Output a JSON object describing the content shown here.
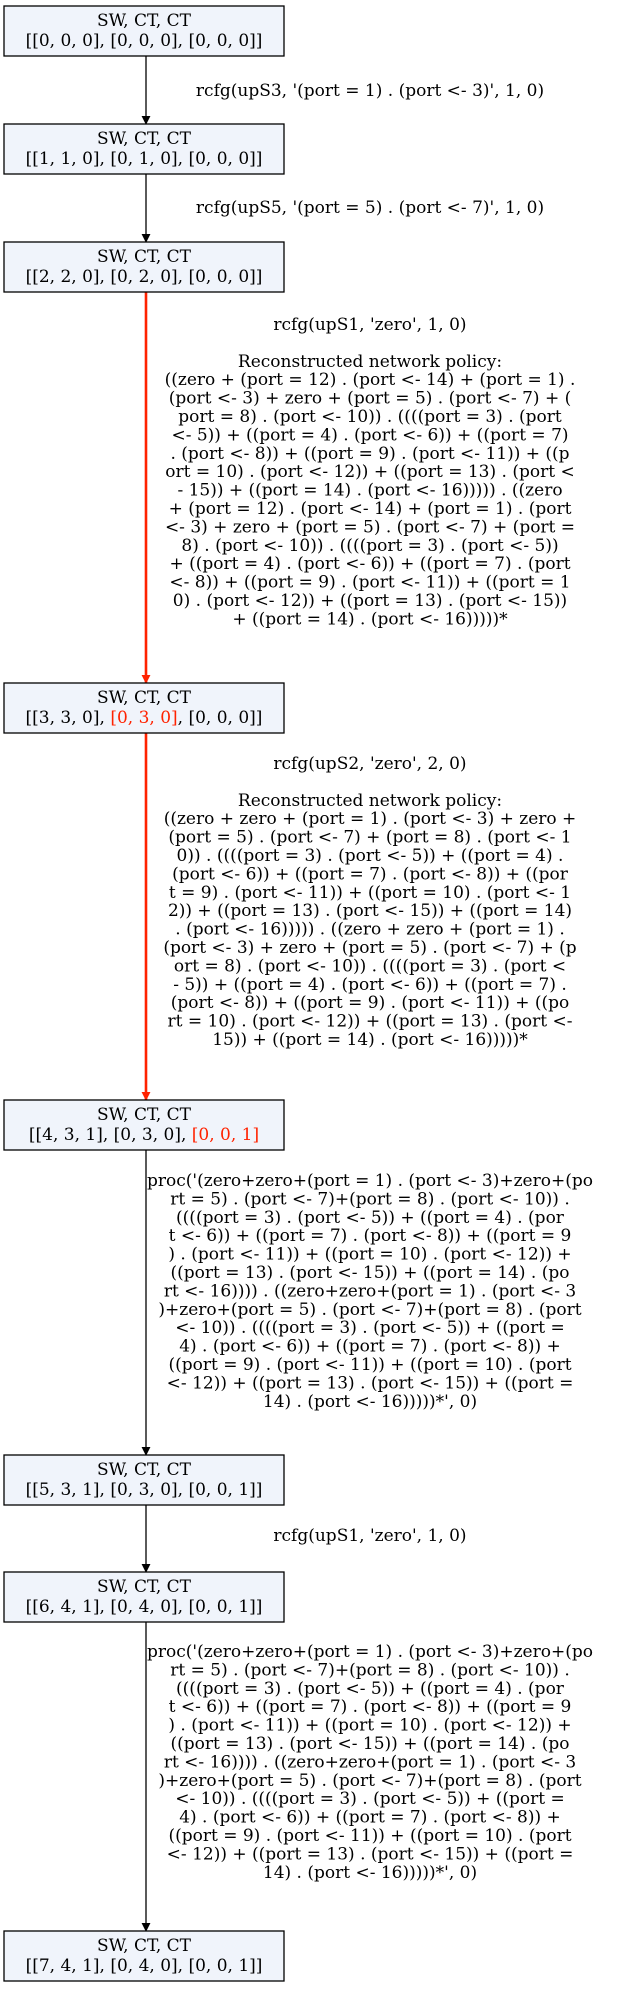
{
  "colors": {
    "node_fill": "#f0f4fb",
    "node_border": "#000000",
    "edge_default": "#000000",
    "edge_highlight": "#ff2200",
    "text_highlight": "#ff2200"
  },
  "nodes": [
    {
      "line1": "SW, CT, CT",
      "line2": [
        {
          "text": "[[0, 0, 0], [0, 0, 0], [0, 0, 0]]",
          "highlight": false
        }
      ]
    },
    {
      "line1": "SW, CT, CT",
      "line2": [
        {
          "text": "[[1, 1, 0], [0, 1, 0], [0, 0, 0]]",
          "highlight": false
        }
      ]
    },
    {
      "line1": "SW, CT, CT",
      "line2": [
        {
          "text": "[[2, 2, 0], [0, 2, 0], [0, 0, 0]]",
          "highlight": false
        }
      ]
    },
    {
      "line1": "SW, CT, CT",
      "line2": [
        {
          "text": "[[3, 3, 0], ",
          "highlight": false
        },
        {
          "text": "[0, 3, 0]",
          "highlight": true
        },
        {
          "text": ", [0, 0, 0]]",
          "highlight": false
        }
      ]
    },
    {
      "line1": "SW, CT, CT",
      "line2": [
        {
          "text": "[[4, 3, 1], [0, 3, 0], ",
          "highlight": false
        },
        {
          "text": "[0, 0, 1]",
          "highlight": true
        }
      ]
    },
    {
      "line1": "SW, CT, CT",
      "line2": [
        {
          "text": "[[5, 3, 1], [0, 3, 0], [0, 0, 1]]",
          "highlight": false
        }
      ]
    },
    {
      "line1": "SW, CT, CT",
      "line2": [
        {
          "text": "[[6, 4, 1], [0, 4, 0], [0, 0, 1]]",
          "highlight": false
        }
      ]
    },
    {
      "line1": "SW, CT, CT",
      "line2": [
        {
          "text": "[[7, 4, 1], [0, 4, 0], [0, 0, 1]]",
          "highlight": false
        }
      ]
    }
  ],
  "edges": [
    {
      "highlight": false,
      "lines": [
        "rcfg(upS3, '(port = 1) . (port <- 3)', 1, 0)"
      ]
    },
    {
      "highlight": false,
      "lines": [
        "rcfg(upS5, '(port = 5) . (port <- 7)', 1, 0)"
      ]
    },
    {
      "highlight": true,
      "lines": [
        "rcfg(upS1, 'zero', 1, 0)",
        "",
        "Reconstructed network policy:",
        "((zero + (port = 12) . (port <- 14) + (port = 1) .",
        "(port <- 3) + zero + (port = 5) . (port <- 7) + (",
        "port = 8) . (port <- 10)) . ((((port = 3) . (port",
        "<- 5)) + ((port = 4) . (port <- 6)) + ((port = 7)",
        ". (port <- 8)) + ((port = 9) . (port <- 11)) + ((p",
        "ort = 10) . (port <- 12)) + ((port = 13) . (port <",
        "- 15)) + ((port = 14) . (port <- 16))))) . ((zero",
        "+ (port = 12) . (port <- 14) + (port = 1) . (port",
        "<- 3) + zero + (port = 5) . (port <- 7) + (port =",
        "8) . (port <- 10)) . ((((port = 3) . (port <- 5))",
        "+ ((port = 4) . (port <- 6)) + ((port = 7) . (port",
        "<- 8)) + ((port = 9) . (port <- 11)) + ((port = 1",
        "0) . (port <- 12)) + ((port = 13) . (port <- 15))",
        "+ ((port = 14) . (port <- 16)))))*"
      ]
    },
    {
      "highlight": true,
      "lines": [
        "rcfg(upS2, 'zero', 2, 0)",
        "",
        "Reconstructed network policy:",
        "((zero + zero + (port = 1) . (port <- 3) + zero +",
        "(port = 5) . (port <- 7) + (port = 8) . (port <- 1",
        "0)) . ((((port = 3) . (port <- 5)) + ((port = 4) .",
        "(port <- 6)) + ((port = 7) . (port <- 8)) + ((por",
        "t = 9) . (port <- 11)) + ((port = 10) . (port <- 1",
        "2)) + ((port = 13) . (port <- 15)) + ((port = 14)",
        ". (port <- 16))))) . ((zero + zero + (port = 1) .",
        "(port <- 3) + zero + (port = 5) . (port <- 7) + (p",
        "ort = 8) . (port <- 10)) . ((((port = 3) . (port <",
        "- 5)) + ((port = 4) . (port <- 6)) + ((port = 7) .",
        "(port <- 8)) + ((port = 9) . (port <- 11)) + ((po",
        "rt = 10) . (port <- 12)) + ((port = 13) . (port <-",
        "15)) + ((port = 14) . (port <- 16)))))*"
      ]
    },
    {
      "highlight": false,
      "lines": [
        "proc('(zero+zero+(port = 1) . (port <- 3)+zero+(po",
        "rt = 5) . (port <- 7)+(port = 8) . (port <- 10)) .",
        "((((port = 3) . (port <- 5)) + ((port = 4) . (por",
        "t <- 6)) + ((port = 7) . (port <- 8)) + ((port = 9",
        ") . (port <- 11)) + ((port = 10) . (port <- 12)) +",
        "((port = 13) . (port <- 15)) + ((port = 14) . (po",
        "rt <- 16)))) . ((zero+zero+(port = 1) . (port <- 3",
        ")+zero+(port = 5) . (port <- 7)+(port = 8) . (port",
        "<- 10)) . ((((port = 3) . (port <- 5)) + ((port =",
        "4) . (port <- 6)) + ((port = 7) . (port <- 8)) +",
        "((port = 9) . (port <- 11)) + ((port = 10) . (port",
        "<- 12)) + ((port = 13) . (port <- 15)) + ((port =",
        "14) . (port <- 16)))))*', 0)"
      ]
    },
    {
      "highlight": false,
      "lines": [
        "rcfg(upS1, 'zero', 1, 0)"
      ]
    },
    {
      "highlight": false,
      "lines": [
        "proc('(zero+zero+(port = 1) . (port <- 3)+zero+(po",
        "rt = 5) . (port <- 7)+(port = 8) . (port <- 10)) .",
        "((((port = 3) . (port <- 5)) + ((port = 4) . (por",
        "t <- 6)) + ((port = 7) . (port <- 8)) + ((port = 9",
        ") . (port <- 11)) + ((port = 10) . (port <- 12)) +",
        "((port = 13) . (port <- 15)) + ((port = 14) . (po",
        "rt <- 16)))) . ((zero+zero+(port = 1) . (port <- 3",
        ")+zero+(port = 5) . (port <- 7)+(port = 8) . (port",
        "<- 10)) . ((((port = 3) . (port <- 5)) + ((port =",
        "4) . (port <- 6)) + ((port = 7) . (port <- 8)) +",
        "((port = 9) . (port <- 11)) + ((port = 10) . (port",
        "<- 12)) + ((port = 13) . (port <- 15)) + ((port =",
        "14) . (port <- 16)))))*', 0)"
      ]
    }
  ]
}
